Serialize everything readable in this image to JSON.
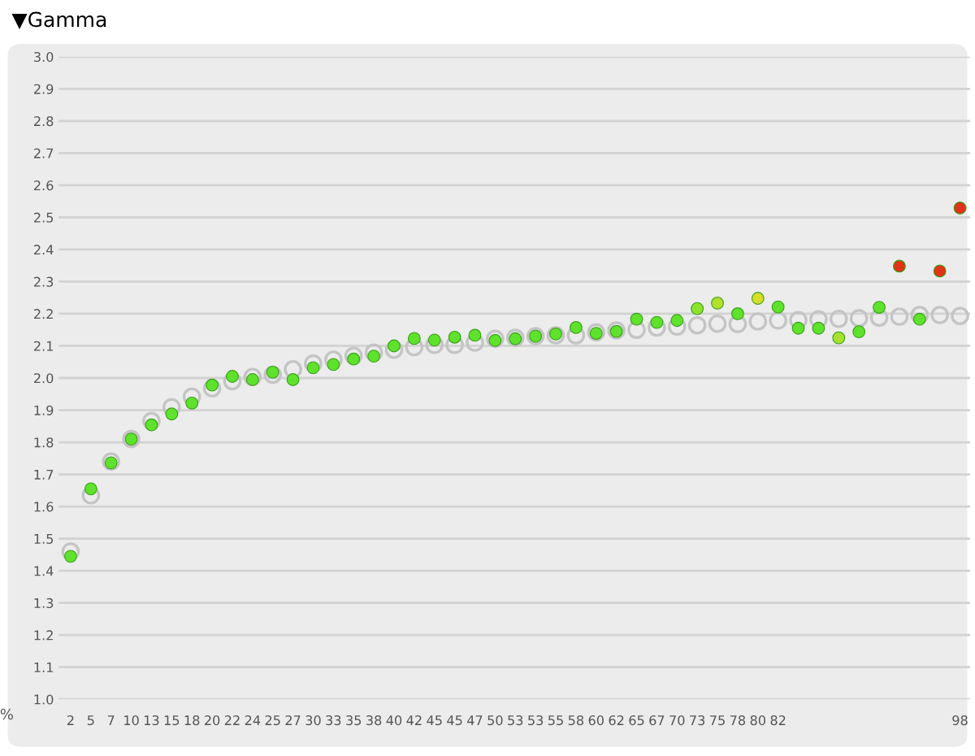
{
  "chart_data": {
    "type": "scatter",
    "title": "▼Gamma",
    "xlabel": "%",
    "categories": [
      "2",
      "5",
      "7",
      "10",
      "13",
      "15",
      "18",
      "20",
      "22",
      "24",
      "25",
      "27",
      "30",
      "33",
      "35",
      "38",
      "40",
      "42",
      "45",
      "45",
      "47",
      "50",
      "53",
      "53",
      "55",
      "58",
      "60",
      "62",
      "65",
      "67",
      "70",
      "73",
      "75",
      "78",
      "80",
      "82",
      null,
      null,
      null,
      null,
      null,
      null,
      null,
      null,
      "98"
    ],
    "series": [
      {
        "color": "#c4c4c4",
        "marker": "circle",
        "values": [
          1.46,
          1.635,
          1.74,
          1.81,
          1.866,
          1.909,
          1.942,
          1.968,
          1.99,
          2.003,
          2.01,
          2.027,
          2.045,
          2.057,
          2.069,
          2.079,
          2.088,
          2.096,
          2.103,
          2.103,
          2.11,
          2.122,
          2.125,
          2.13,
          2.133,
          2.133,
          2.142,
          2.148,
          2.15,
          2.157,
          2.16,
          2.164,
          2.169,
          2.168,
          2.176,
          2.179,
          2.18,
          2.183,
          2.184,
          2.186,
          2.188,
          2.191,
          2.196,
          2.196,
          2.193
        ]
      },
      {
        "color": "#5ee22c",
        "marker": "circle",
        "values": [
          1.445,
          1.655,
          1.736,
          1.81,
          1.854,
          1.888,
          1.922,
          1.978,
          2.005,
          1.995,
          2.018,
          1.995,
          2.032,
          2.042,
          2.059,
          2.068,
          2.1,
          2.123,
          2.118,
          2.127,
          2.133,
          2.117,
          2.122,
          2.13,
          2.137,
          2.157,
          2.139,
          2.145,
          2.183,
          2.173,
          2.179,
          2.216,
          2.233,
          2.2,
          2.248,
          2.221,
          2.155,
          2.155,
          2.125,
          2.144,
          2.22,
          2.348,
          2.183,
          2.333,
          2.529
        ],
        "colors": [
          "#5ee22c",
          "#5ee22c",
          "#5ee22c",
          "#5ee22c",
          "#5ee22c",
          "#5ee22c",
          "#5ee22c",
          "#5ee22c",
          "#5ee22c",
          "#5ee22c",
          "#5ee22c",
          "#5ee22c",
          "#5ee22c",
          "#5ee22c",
          "#5ee22c",
          "#5ee22c",
          "#5ee22c",
          "#5ee22c",
          "#5ee22c",
          "#5ee22c",
          "#5ee22c",
          "#5ee22c",
          "#5ee22c",
          "#5ee22c",
          "#5ee22c",
          "#5ee22c",
          "#5ee22c",
          "#5ee22c",
          "#5ee22c",
          "#5ee22c",
          "#5ee22c",
          "#8fe22c",
          "#b2e02c",
          "#5ee22c",
          "#d8dc2a",
          "#5ee22c",
          "#5ee22c",
          "#5ee22c",
          "#a8e02c",
          "#5ee22c",
          "#5ee22c",
          "#de3418",
          "#5ee22c",
          "#de3418",
          "#de3418"
        ]
      }
    ],
    "ylim": [
      1.0,
      3.0
    ],
    "yticks": [
      {
        "value": 1.0,
        "label": "1.0"
      },
      {
        "value": 1.1,
        "label": "1.1"
      },
      {
        "value": 1.2,
        "label": "1.2"
      },
      {
        "value": 1.3,
        "label": "1.3"
      },
      {
        "value": 1.4,
        "label": "1.4"
      },
      {
        "value": 1.5,
        "label": "1.5"
      },
      {
        "value": 1.6,
        "label": "1.6"
      },
      {
        "value": 1.7,
        "label": "1.7"
      },
      {
        "value": 1.8,
        "label": "1.8"
      },
      {
        "value": 1.9,
        "label": "1.9"
      },
      {
        "value": 2.0,
        "label": "2.0"
      },
      {
        "value": 2.1,
        "label": "2.1"
      },
      {
        "value": 2.2,
        "label": "2.2"
      },
      {
        "value": 2.3,
        "label": "2.3"
      },
      {
        "value": 2.4,
        "label": "2.4"
      },
      {
        "value": 2.5,
        "label": "2.5"
      },
      {
        "value": 2.6,
        "label": "2.6"
      },
      {
        "value": 2.7,
        "label": "2.7"
      },
      {
        "value": 2.8,
        "label": "2.8"
      },
      {
        "value": 2.9,
        "label": "2.9"
      },
      {
        "value": 3.0,
        "label": "3.0"
      }
    ],
    "grid": "y",
    "legend": false
  }
}
